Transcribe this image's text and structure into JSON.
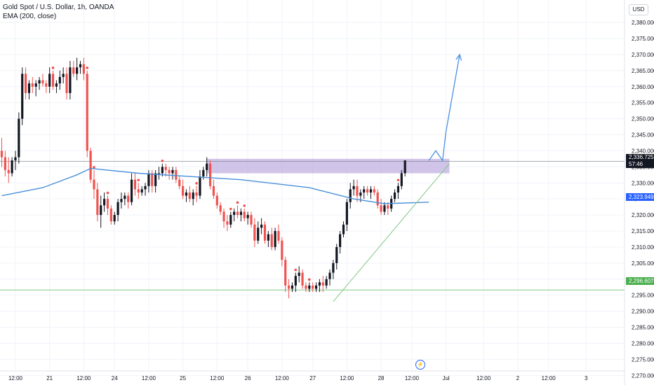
{
  "legend": {
    "symbol": "Gold Spot / U.S. Dollar, 1h, OANDA",
    "indicator": "EMA (200, close)"
  },
  "currency_button": "USD",
  "badges": {
    "last_price": "2,336.725",
    "countdown": "57:46",
    "ema_value": "2,323.949",
    "support_value": "2,296.607"
  },
  "colors": {
    "up": "#131722",
    "down": "#ef5350",
    "ema": "#4a90d9",
    "zone": "#b39ddb",
    "support": "#81c784",
    "projection": "#4a90e2",
    "grid": "#f0f3fa",
    "axis_text": "#131722"
  },
  "chart_data": {
    "type": "candlestick",
    "symbol": "Gold Spot / U.S. Dollar",
    "interval": "1h",
    "y_axis": {
      "ylim": [
        2267,
        2387
      ],
      "ticks": [
        2270,
        2275,
        2280,
        2285,
        2290,
        2295,
        2300,
        2305,
        2310,
        2315,
        2320,
        2325,
        2330,
        2335,
        2340,
        2345,
        2350,
        2355,
        2360,
        2365,
        2370,
        2375,
        2380
      ],
      "tick_labels": [
        "2,270.000",
        "2,275.000",
        "2,280.000",
        "2,285.000",
        "2,290.000",
        "2,295.000",
        "2,300.000",
        "2,305.000",
        "2,310.000",
        "2,315.000",
        "2,320.000",
        "2,325.000",
        "2,330.000",
        "2,335.000",
        "2,340.000",
        "2,345.000",
        "2,350.000",
        "2,355.000",
        "2,360.000",
        "2,365.000",
        "2,370.000",
        "2,375.000",
        "2,380.000"
      ]
    },
    "x_axis": {
      "ticks": [
        {
          "i": 4,
          "label": "12:00"
        },
        {
          "i": 14,
          "label": "21"
        },
        {
          "i": 24,
          "label": "12:00"
        },
        {
          "i": 33,
          "label": "24"
        },
        {
          "i": 43,
          "label": "12:00"
        },
        {
          "i": 53,
          "label": "25"
        },
        {
          "i": 63,
          "label": "12:00"
        },
        {
          "i": 72,
          "label": "26"
        },
        {
          "i": 82,
          "label": "12:00"
        },
        {
          "i": 91,
          "label": "27"
        },
        {
          "i": 101,
          "label": "12:00"
        },
        {
          "i": 111,
          "label": "28"
        },
        {
          "i": 120,
          "label": "12:00"
        },
        {
          "i": 130,
          "label": "Jul"
        },
        {
          "i": 141,
          "label": "12:00"
        },
        {
          "i": 151,
          "label": "2"
        },
        {
          "i": 160,
          "label": "12:00"
        },
        {
          "i": 171,
          "label": "3"
        }
      ]
    },
    "candles": [
      [
        2340,
        2344,
        2335,
        2338
      ],
      [
        2338,
        2340,
        2332,
        2334
      ],
      [
        2334,
        2338,
        2330,
        2333
      ],
      [
        2333,
        2338,
        2332,
        2337
      ],
      [
        2337,
        2340,
        2334,
        2338
      ],
      [
        2338,
        2352,
        2336,
        2350
      ],
      [
        2350,
        2366,
        2348,
        2364
      ],
      [
        2364,
        2366,
        2356,
        2358
      ],
      [
        2358,
        2362,
        2356,
        2361
      ],
      [
        2361,
        2363,
        2358,
        2360
      ],
      [
        2360,
        2362,
        2357,
        2361
      ],
      [
        2361,
        2363,
        2359,
        2362
      ],
      [
        2362,
        2364,
        2360,
        2361
      ],
      [
        2361,
        2362,
        2358,
        2360
      ],
      [
        2360,
        2366,
        2358,
        2364
      ],
      [
        2364,
        2365,
        2359,
        2360
      ],
      [
        2360,
        2362,
        2358,
        2361
      ],
      [
        2361,
        2365,
        2359,
        2363
      ],
      [
        2363,
        2366,
        2361,
        2364
      ],
      [
        2364,
        2366,
        2356,
        2358
      ],
      [
        2358,
        2368,
        2356,
        2366
      ],
      [
        2366,
        2368,
        2363,
        2364
      ],
      [
        2364,
        2369,
        2362,
        2366
      ],
      [
        2366,
        2368,
        2364,
        2367
      ],
      [
        2367,
        2369,
        2362,
        2364
      ],
      [
        2364,
        2365,
        2338,
        2340
      ],
      [
        2340,
        2341,
        2330,
        2331
      ],
      [
        2331,
        2334,
        2325,
        2328
      ],
      [
        2328,
        2330,
        2318,
        2320
      ],
      [
        2320,
        2326,
        2316,
        2323
      ],
      [
        2323,
        2327,
        2321,
        2325
      ],
      [
        2325,
        2326,
        2320,
        2322
      ],
      [
        2322,
        2323,
        2317,
        2318
      ],
      [
        2318,
        2321,
        2317,
        2320
      ],
      [
        2320,
        2325,
        2318,
        2324
      ],
      [
        2324,
        2327,
        2322,
        2325
      ],
      [
        2325,
        2327,
        2323,
        2326
      ],
      [
        2326,
        2327,
        2322,
        2324
      ],
      [
        2324,
        2333,
        2323,
        2331
      ],
      [
        2331,
        2333,
        2326,
        2328
      ],
      [
        2328,
        2330,
        2325,
        2327
      ],
      [
        2327,
        2329,
        2326,
        2328
      ],
      [
        2328,
        2330,
        2326,
        2329
      ],
      [
        2329,
        2334,
        2327,
        2333
      ],
      [
        2333,
        2334,
        2327,
        2329
      ],
      [
        2329,
        2334,
        2327,
        2333
      ],
      [
        2333,
        2335,
        2331,
        2333
      ],
      [
        2333,
        2336,
        2332,
        2335
      ],
      [
        2335,
        2336,
        2332,
        2334
      ],
      [
        2334,
        2335,
        2331,
        2333
      ],
      [
        2333,
        2335,
        2331,
        2334
      ],
      [
        2334,
        2335,
        2330,
        2331
      ],
      [
        2331,
        2332,
        2328,
        2329
      ],
      [
        2329,
        2331,
        2325,
        2326
      ],
      [
        2326,
        2328,
        2324,
        2327
      ],
      [
        2327,
        2329,
        2324,
        2325
      ],
      [
        2325,
        2328,
        2323,
        2327
      ],
      [
        2327,
        2329,
        2324,
        2326
      ],
      [
        2326,
        2334,
        2325,
        2332
      ],
      [
        2332,
        2335,
        2331,
        2334
      ],
      [
        2334,
        2338,
        2332,
        2336
      ],
      [
        2336,
        2337,
        2328,
        2329
      ],
      [
        2329,
        2331,
        2325,
        2326
      ],
      [
        2326,
        2327,
        2322,
        2323
      ],
      [
        2323,
        2324,
        2320,
        2321
      ],
      [
        2321,
        2322,
        2316,
        2318
      ],
      [
        2318,
        2320,
        2315,
        2317
      ],
      [
        2317,
        2321,
        2316,
        2320
      ],
      [
        2320,
        2322,
        2318,
        2321
      ],
      [
        2321,
        2323,
        2319,
        2320
      ],
      [
        2320,
        2322,
        2318,
        2321
      ],
      [
        2321,
        2322,
        2318,
        2319
      ],
      [
        2319,
        2321,
        2317,
        2320
      ],
      [
        2320,
        2321,
        2316,
        2317
      ],
      [
        2317,
        2319,
        2310,
        2312
      ],
      [
        2312,
        2318,
        2311,
        2316
      ],
      [
        2316,
        2319,
        2314,
        2317
      ],
      [
        2317,
        2318,
        2311,
        2312
      ],
      [
        2312,
        2315,
        2310,
        2314
      ],
      [
        2314,
        2316,
        2309,
        2310
      ],
      [
        2310,
        2316,
        2309,
        2315
      ],
      [
        2315,
        2317,
        2311,
        2312
      ],
      [
        2312,
        2313,
        2304,
        2306
      ],
      [
        2306,
        2307,
        2296,
        2298
      ],
      [
        2298,
        2300,
        2294,
        2297
      ],
      [
        2297,
        2299,
        2296,
        2298
      ],
      [
        2298,
        2302,
        2296,
        2301
      ],
      [
        2301,
        2304,
        2299,
        2302
      ],
      [
        2302,
        2303,
        2297,
        2298
      ],
      [
        2298,
        2299,
        2296,
        2297
      ],
      [
        2297,
        2299,
        2296,
        2298
      ],
      [
        2298,
        2299,
        2296,
        2297
      ],
      [
        2297,
        2299,
        2296,
        2298
      ],
      [
        2298,
        2300,
        2296,
        2299
      ],
      [
        2299,
        2301,
        2296,
        2298
      ],
      [
        2298,
        2301,
        2297,
        2300
      ],
      [
        2300,
        2303,
        2298,
        2302
      ],
      [
        2302,
        2306,
        2300,
        2305
      ],
      [
        2305,
        2311,
        2303,
        2310
      ],
      [
        2310,
        2315,
        2308,
        2314
      ],
      [
        2314,
        2318,
        2313,
        2317
      ],
      [
        2317,
        2325,
        2315,
        2324
      ],
      [
        2324,
        2330,
        2322,
        2328
      ],
      [
        2328,
        2331,
        2326,
        2329
      ],
      [
        2329,
        2331,
        2324,
        2326
      ],
      [
        2326,
        2328,
        2324,
        2327
      ],
      [
        2327,
        2329,
        2325,
        2328
      ],
      [
        2328,
        2329,
        2326,
        2327
      ],
      [
        2327,
        2329,
        2325,
        2328
      ],
      [
        2328,
        2329,
        2326,
        2327
      ],
      [
        2327,
        2328,
        2322,
        2323
      ],
      [
        2323,
        2325,
        2320,
        2321
      ],
      [
        2321,
        2324,
        2320,
        2323
      ],
      [
        2323,
        2324,
        2320,
        2322
      ],
      [
        2322,
        2326,
        2321,
        2325
      ],
      [
        2325,
        2328,
        2324,
        2327
      ],
      [
        2327,
        2330,
        2325,
        2329
      ],
      [
        2329,
        2334,
        2328,
        2333
      ],
      [
        2333,
        2337,
        2332,
        2337
      ]
    ],
    "ema_200": [
      [
        0,
        2326.0
      ],
      [
        12,
        2328.5
      ],
      [
        22,
        2332.5
      ],
      [
        26,
        2334.5
      ],
      [
        40,
        2333.0
      ],
      [
        70,
        2331.0
      ],
      [
        90,
        2328.5
      ],
      [
        103,
        2325.0
      ],
      [
        112,
        2323.5
      ],
      [
        125,
        2324.0
      ]
    ],
    "resistance_zone": {
      "i_start": 60,
      "i_end": 131,
      "y_low": 2333.0,
      "y_high": 2337.5
    },
    "current_price_line": 2336.725,
    "support_line": 2296.607,
    "trendline": {
      "from": [
        97,
        2293.0
      ],
      "to": [
        131,
        2336.0
      ]
    },
    "projection_path": [
      [
        125,
        2337
      ],
      [
        127,
        2340
      ],
      [
        129,
        2337
      ],
      [
        130,
        2346
      ],
      [
        132,
        2358
      ],
      [
        134,
        2370
      ]
    ],
    "highlighted_candles_i": [
      15,
      25,
      27,
      31,
      40,
      47,
      57,
      67,
      69,
      71,
      86,
      90,
      116,
      123
    ]
  }
}
